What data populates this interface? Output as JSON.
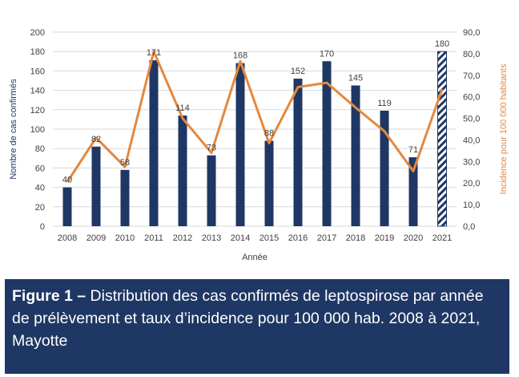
{
  "chart_data": {
    "type": "bar",
    "categories": [
      "2008",
      "2009",
      "2010",
      "2011",
      "2012",
      "2013",
      "2014",
      "2015",
      "2016",
      "2017",
      "2018",
      "2019",
      "2020",
      "2021"
    ],
    "series": [
      {
        "name": "",
        "chart_kind": "bar",
        "axis": "left",
        "values": [
          40,
          82,
          58,
          171,
          114,
          73,
          168,
          88,
          152,
          170,
          145,
          119,
          71,
          180
        ],
        "data_labels": [
          "40",
          "82",
          "58",
          "171",
          "114",
          "73",
          "168",
          "88",
          "152",
          "170",
          "145",
          "119",
          "71",
          "180"
        ],
        "color": "#1f3764",
        "hatched_last_bar": true
      },
      {
        "name": "",
        "chart_kind": "line",
        "axis": "right",
        "values": [
          20.5,
          41.0,
          27.5,
          81.0,
          50.0,
          34.0,
          76.5,
          38.5,
          64.5,
          66.5,
          55.0,
          44.0,
          25.5,
          63.5
        ],
        "color": "#e5883d"
      }
    ],
    "xlabel": "Année",
    "ylabel": "Nombre de cas confirmés",
    "y2label": "Incidence pour 100 000 habitants",
    "ylim": [
      0,
      200
    ],
    "y2lim": [
      0,
      90
    ],
    "yticks": [
      "0",
      "20",
      "40",
      "60",
      "80",
      "100",
      "120",
      "140",
      "160",
      "180",
      "200"
    ],
    "y2ticks": [
      "0,0",
      "10,0",
      "20,0",
      "30,0",
      "40,0",
      "50,0",
      "60,0",
      "70,0",
      "80,0",
      "90,0"
    ],
    "grid": true,
    "legend": "none"
  },
  "caption": {
    "label": "Figure 1 –",
    "text": " Distribution des cas confirmés de leptospirose par année de prélèvement et taux d’incidence pour 100 000 hab. 2008 à 2021, Mayotte"
  }
}
